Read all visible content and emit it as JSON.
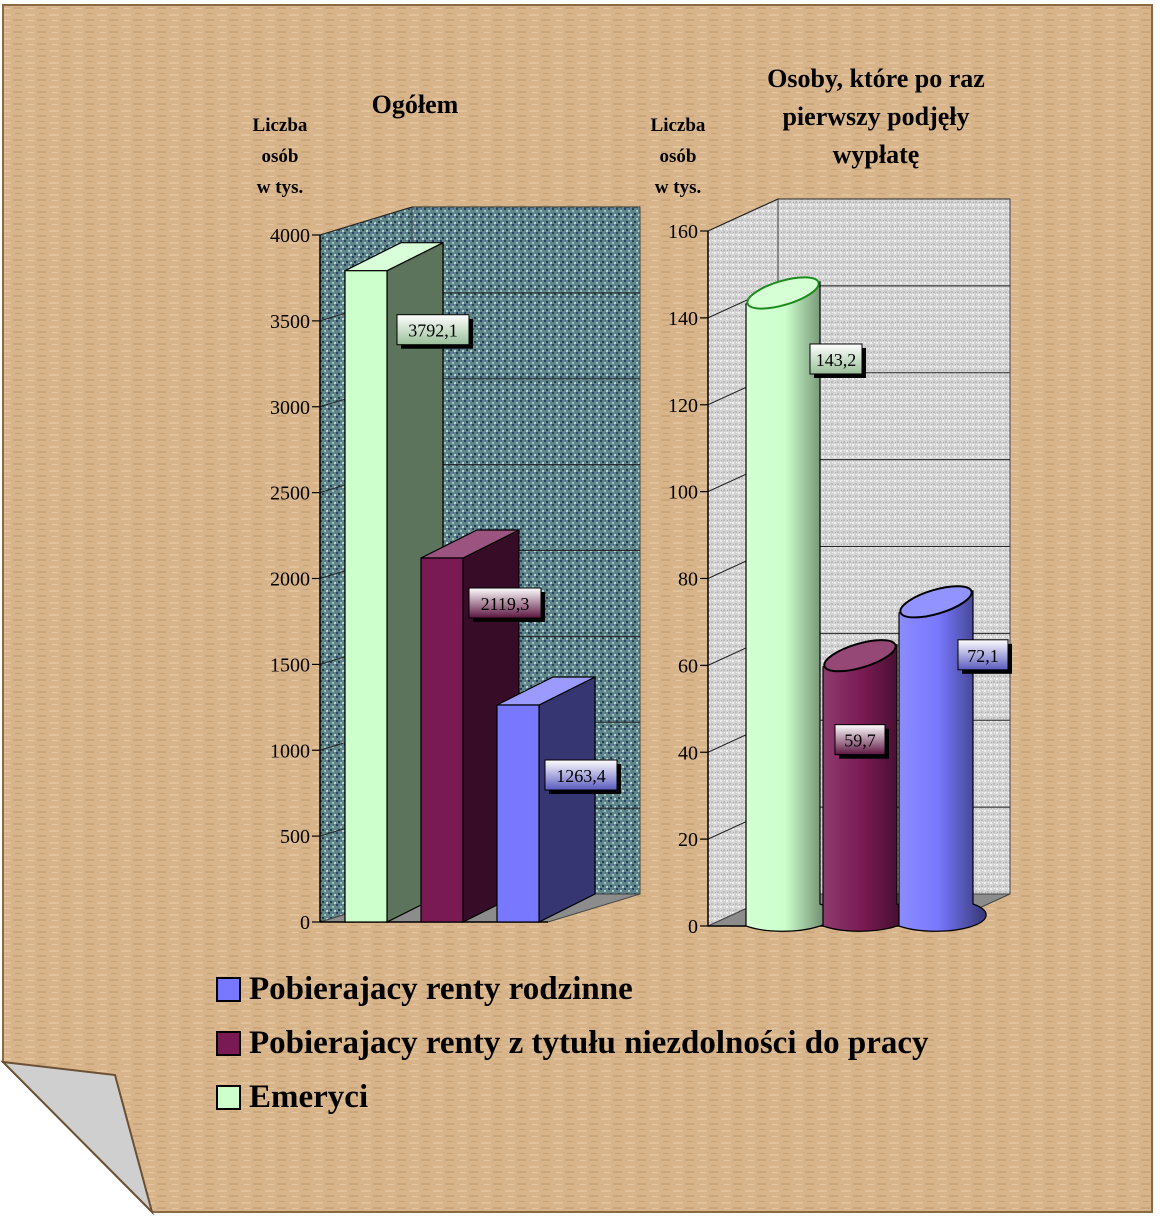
{
  "chart_data": [
    {
      "type": "bar",
      "title": "Ogółem",
      "ylabel": "Liczba\nosób\nw tys.",
      "ylim": [
        0,
        4000
      ],
      "yticks": [
        "0",
        "500",
        "1000",
        "1500",
        "2000",
        "2500",
        "3000",
        "3500",
        "4000"
      ],
      "ytick_values": [
        0,
        500,
        1000,
        1500,
        2000,
        2500,
        3000,
        3500,
        4000
      ],
      "grid": true,
      "series": [
        {
          "name": "Emeryci",
          "values": [
            3792.1
          ],
          "label": "3792,1"
        },
        {
          "name": "Pobierajacy renty z tytułu niezdolności do pracy",
          "values": [
            2119.3
          ],
          "label": "2119,3"
        },
        {
          "name": "Pobierajacy renty rodzinne",
          "values": [
            1263.4
          ],
          "label": "1263,4"
        }
      ]
    },
    {
      "type": "bar",
      "title": "Osoby, które po raz\npierwszy podjęły\nwypłatę",
      "ylabel": "Liczba\nosób\nw tys.",
      "ylim": [
        0,
        160
      ],
      "yticks": [
        "0",
        "20",
        "40",
        "60",
        "80",
        "100",
        "120",
        "140",
        "160"
      ],
      "ytick_values": [
        0,
        20,
        40,
        60,
        80,
        100,
        120,
        140,
        160
      ],
      "grid": true,
      "series": [
        {
          "name": "Emeryci",
          "values": [
            143.2
          ],
          "label": "143,2"
        },
        {
          "name": "Pobierajacy renty z tytułu niezdolności do pracy",
          "values": [
            59.7
          ],
          "label": "59,7"
        },
        {
          "name": "Pobierajacy renty rodzinne",
          "values": [
            72.1
          ],
          "label": "72,1"
        }
      ]
    }
  ],
  "legend": {
    "placement": "bottom",
    "items": [
      {
        "label": "Pobierajacy renty rodzinne",
        "color": "#7878ff"
      },
      {
        "label": "Pobierajacy renty z tytułu niezdolności do pracy",
        "color": "#7a1a54"
      },
      {
        "label": "Emeryci",
        "color": "#ccffcc"
      }
    ]
  },
  "colors": {
    "background": "#d6b48c",
    "emeryci": "#ccffcc",
    "renty_niezdolnosc": "#7a1a54",
    "renty_rodzinne": "#7878ff"
  }
}
